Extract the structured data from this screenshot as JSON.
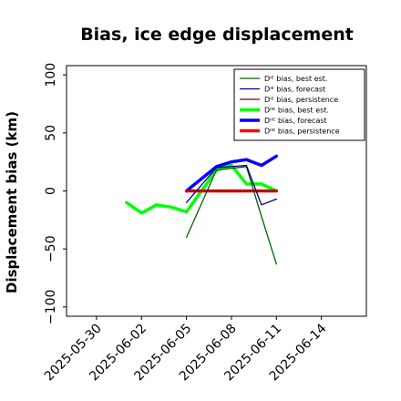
{
  "chart_data": {
    "type": "line",
    "title": "Bias, ice edge displacement",
    "xlabel": "",
    "ylabel": "Displacement bias (km)",
    "ylim": [
      -108,
      108
    ],
    "yticks": [
      100,
      50,
      0,
      -50,
      -100
    ],
    "ytick_labels": [
      "100",
      "50",
      "0",
      "−50",
      "−100"
    ],
    "xlim": [
      "2025-05-28",
      "2025-06-17"
    ],
    "xticks": [
      "2025-05-30",
      "2025-06-02",
      "2025-06-05",
      "2025-06-08",
      "2025-06-11",
      "2025-06-14"
    ],
    "xtick_labels": [
      {
        "text": "2025-05-30",
        "color": "#000000"
      },
      {
        "text": "2025-06-02",
        "color": "#000000"
      },
      {
        "text": "2025-06-05",
        "color": "#228b22"
      },
      {
        "text": "2025-06-08",
        "color": "#000000"
      },
      {
        "text": "2025-06-11",
        "color": "#000000"
      },
      {
        "text": "2025-06-14",
        "color": "#000000"
      }
    ],
    "grid": false,
    "legend_position": "top-right",
    "series": [
      {
        "name": "Dᴵᴱ bias, best est.",
        "color": "#006400",
        "width": 1.3,
        "x": [
          "2025-06-05",
          "2025-06-07",
          "2025-06-09",
          "2025-06-10",
          "2025-06-11"
        ],
        "y": [
          -40,
          18,
          21,
          -22,
          -63
        ]
      },
      {
        "name": "Dᴵᴱ bias, forecast",
        "color": "#00008b",
        "width": 1.3,
        "x": [
          "2025-06-05",
          "2025-06-07",
          "2025-06-09",
          "2025-06-10",
          "2025-06-11"
        ],
        "y": [
          -10,
          20,
          22,
          -12,
          -7
        ]
      },
      {
        "name": "Dᴵᴱ bias, persistence",
        "color": "#8b0000",
        "width": 1.3,
        "x": [
          "2025-06-05",
          "2025-06-11"
        ],
        "y": [
          0,
          0
        ]
      },
      {
        "name": "Dᴵᴵᴱ bias, best est.",
        "color": "#00ff00",
        "width": 3.5,
        "x": [
          "2025-06-01",
          "2025-06-02",
          "2025-06-03",
          "2025-06-04",
          "2025-06-05",
          "2025-06-06",
          "2025-06-07",
          "2025-06-08",
          "2025-06-09",
          "2025-06-10",
          "2025-06-11"
        ],
        "y": [
          -10,
          -19,
          -12,
          -14,
          -18,
          0,
          18,
          22,
          6,
          6,
          0
        ]
      },
      {
        "name": "Dᴵᴵᴱ bias, forecast",
        "color": "#0000ff",
        "width": 3.5,
        "x": [
          "2025-06-05",
          "2025-06-07",
          "2025-06-08",
          "2025-06-09",
          "2025-06-10",
          "2025-06-11"
        ],
        "y": [
          0,
          21,
          25,
          27,
          22,
          30
        ]
      },
      {
        "name": "Dᴵᴵᴱ bias, persistence",
        "color": "#ff0000",
        "width": 3.5,
        "x": [
          "2025-06-05",
          "2025-06-11"
        ],
        "y": [
          0,
          0
        ]
      }
    ]
  }
}
